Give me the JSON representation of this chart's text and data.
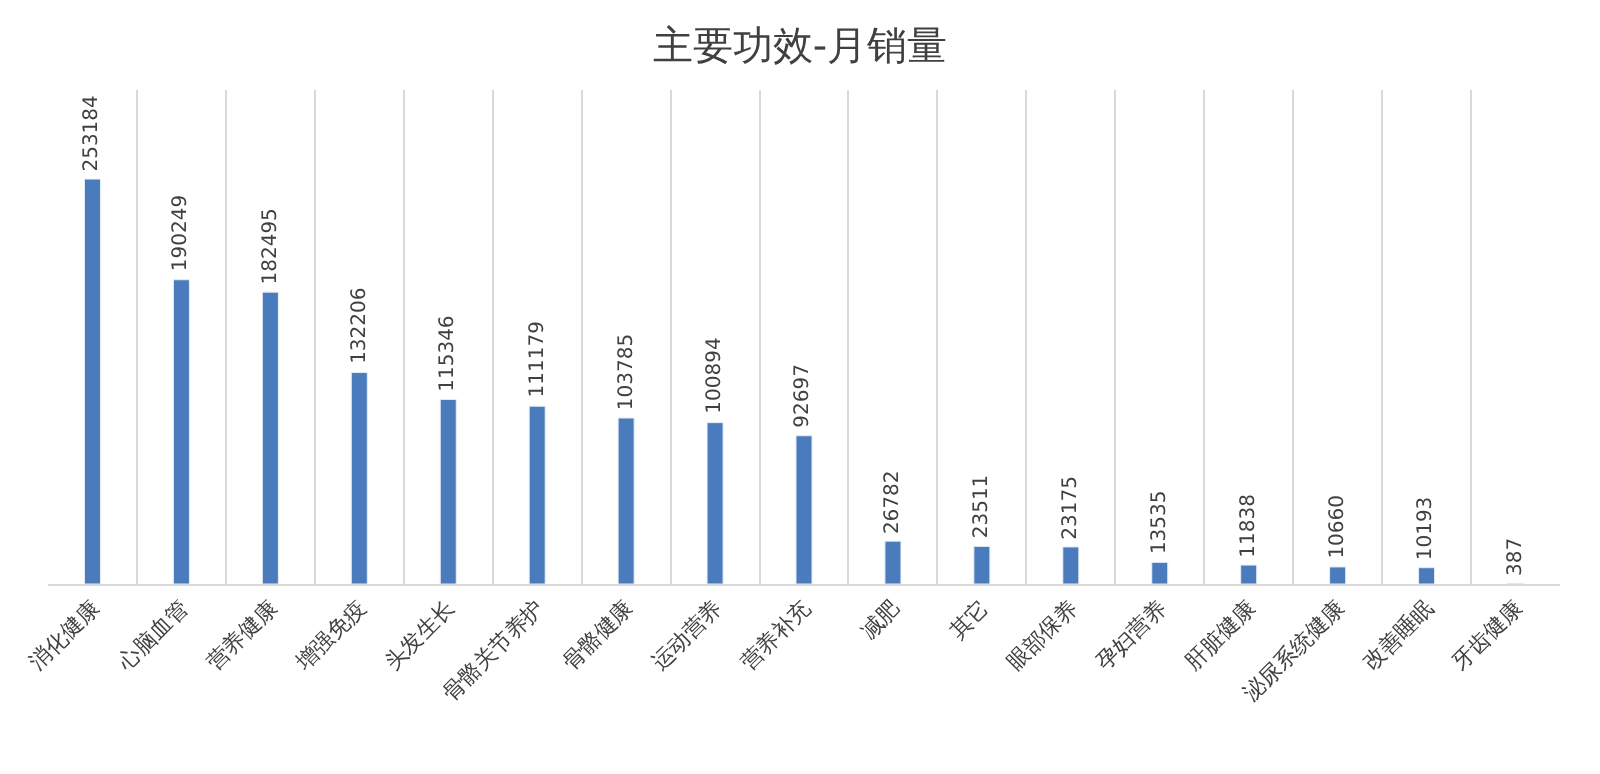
{
  "chart_data": {
    "type": "bar",
    "title": "主要功效-月销量",
    "categories": [
      "消化健康",
      "心脑血管",
      "营养健康",
      "增强免疫",
      "头发生长",
      "骨骼关节养护",
      "骨骼健康",
      "运动营养",
      "营养补充",
      "减肥",
      "其它",
      "眼部保养",
      "孕妇营养",
      "肝脏健康",
      "泌尿系统健康",
      "改善睡眠",
      "牙齿健康"
    ],
    "values": [
      253184,
      190249,
      182495,
      132206,
      115346,
      111179,
      103785,
      100894,
      92697,
      26782,
      23511,
      23175,
      13535,
      11838,
      10660,
      10193,
      387
    ],
    "color": "#4a7bbd",
    "data_labels": true,
    "grid": "x",
    "legend": false
  }
}
